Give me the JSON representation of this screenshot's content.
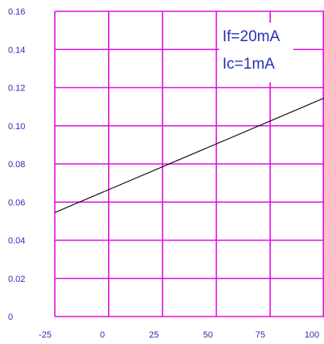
{
  "chart_data": {
    "type": "line",
    "title": "",
    "xlabel": "",
    "ylabel": "",
    "xlim": [
      -25,
      100
    ],
    "ylim": [
      0,
      0.16
    ],
    "x_ticks": [
      "-25",
      "0",
      "25",
      "50",
      "75",
      "100"
    ],
    "y_ticks": [
      "0",
      "0.02",
      "0.04",
      "0.06",
      "0.08",
      "0.10",
      "0.12",
      "0.14",
      "0.16"
    ],
    "grid": true,
    "annotations": [
      "If=20mA",
      "Ic=1mA"
    ],
    "series": [
      {
        "x": [
          -25,
          100
        ],
        "y": [
          0.0545,
          0.1145
        ]
      }
    ],
    "colors": {
      "grid": "#e011e0",
      "text": "#2a2fb5",
      "line": "#000000"
    }
  }
}
